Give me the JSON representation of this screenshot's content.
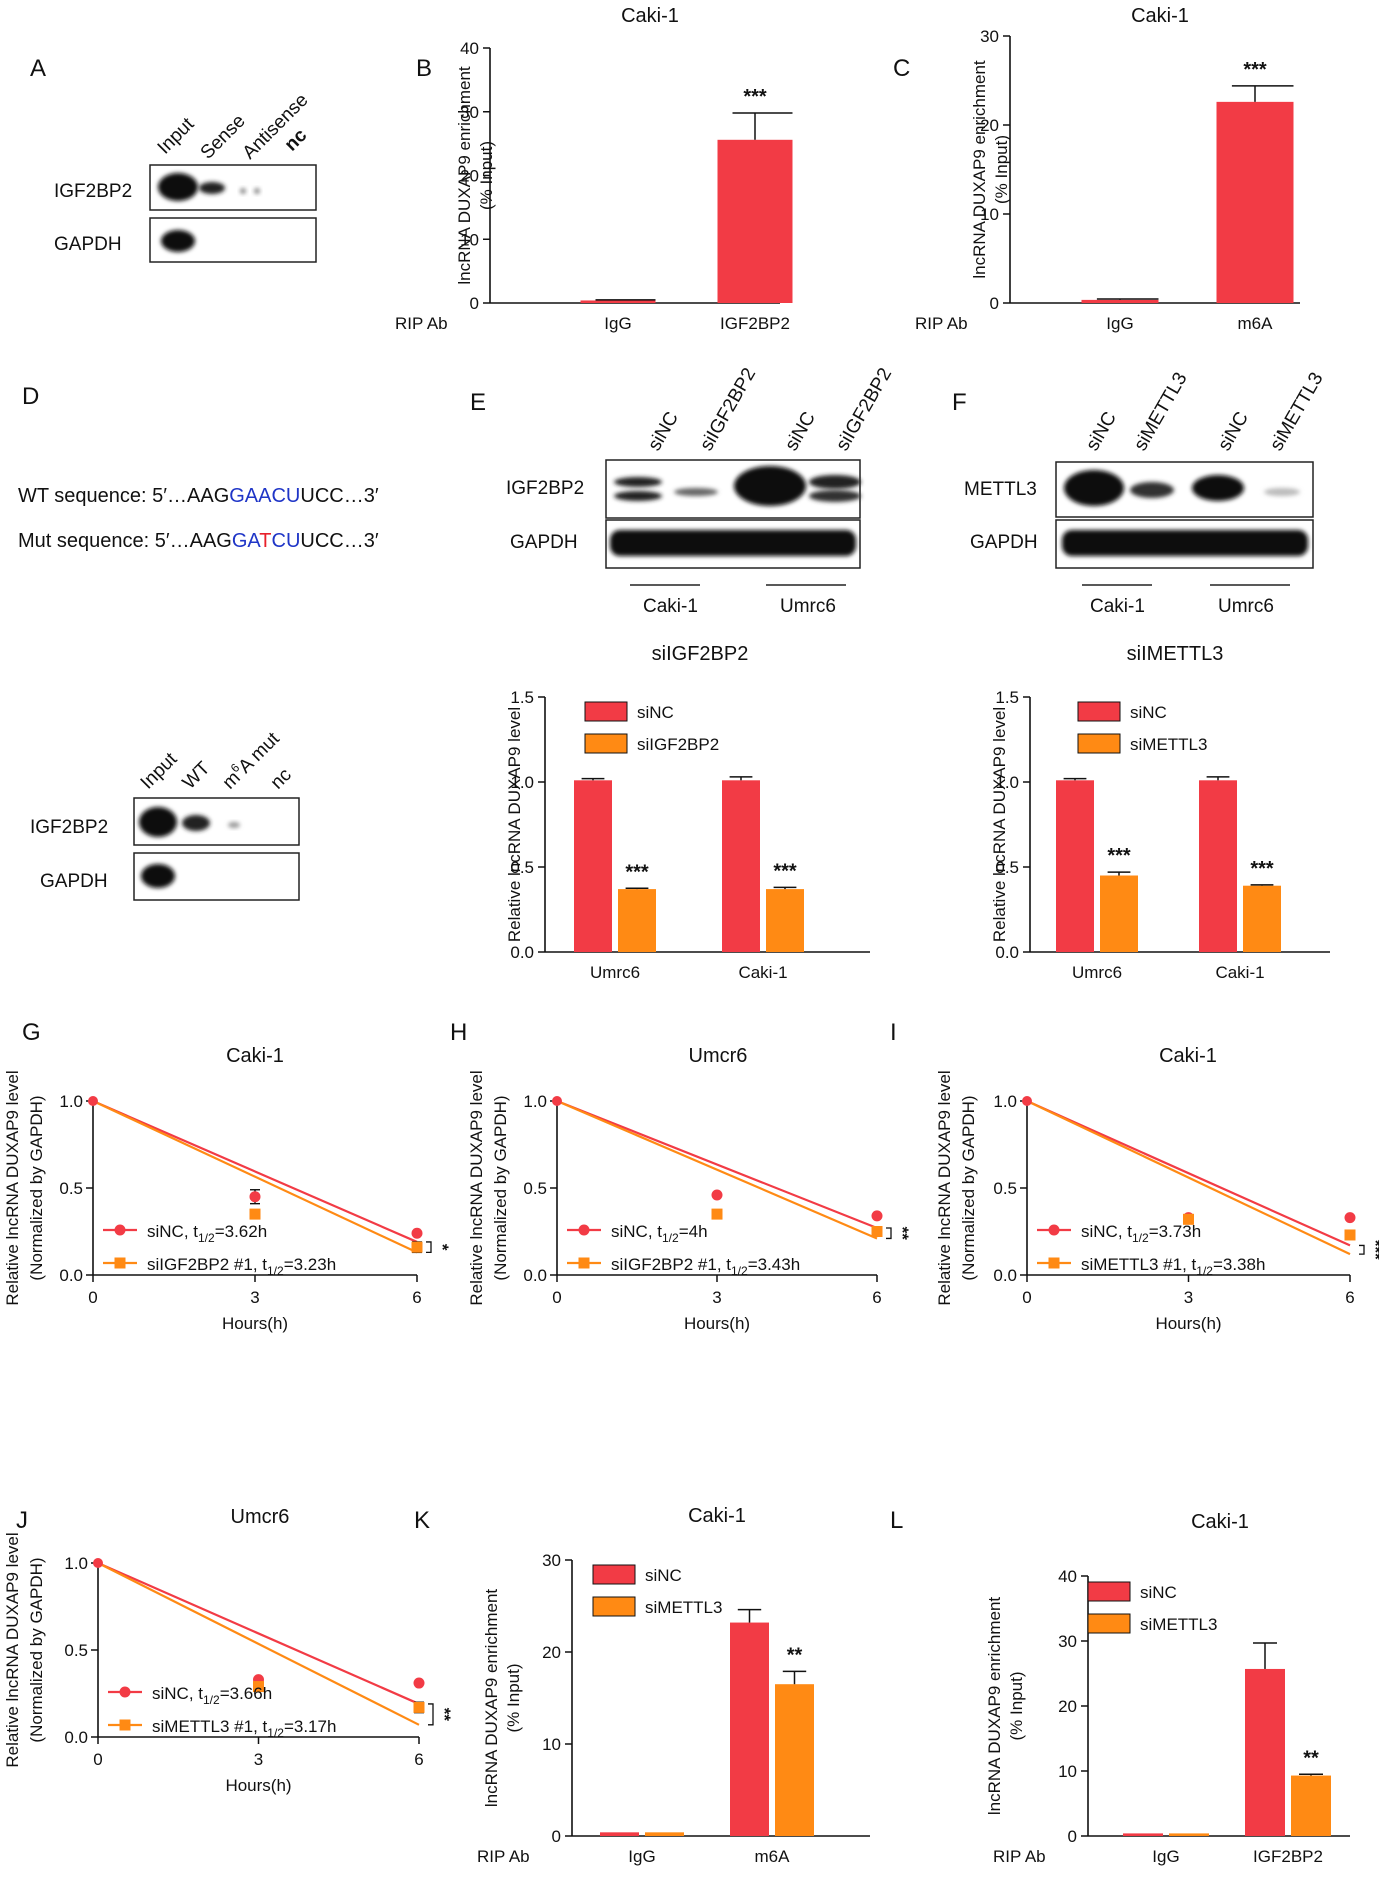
{
  "colors": {
    "red": "#f23b45",
    "orange": "#ff8a14",
    "blue": "#1f35c7",
    "seq_red": "#e8202a",
    "axis": "#111111"
  },
  "panel_letters": {
    "A": "A",
    "B": "B",
    "C": "C",
    "D": "D",
    "E": "E",
    "F": "F",
    "G": "G",
    "H": "H",
    "I": "I",
    "J": "J",
    "K": "K",
    "L": "L"
  },
  "blotA": {
    "lanes": [
      "Input",
      "Sense",
      "Antisense",
      "nc"
    ],
    "rows": [
      "IGF2BP2",
      "GAPDH"
    ]
  },
  "blotD": {
    "lanes": [
      "Input",
      "WT",
      "A mut",
      "nc"
    ],
    "sup": "6",
    "pre": "m",
    "rows": [
      "IGF2BP2",
      "GAPDH"
    ]
  },
  "blotE": {
    "lanes": [
      "siNC",
      "siIGF2BP2",
      "siNC",
      "siIGF2BP2"
    ],
    "rows": [
      "IGF2BP2",
      "GAPDH"
    ],
    "groups": [
      "Caki-1",
      "Umrc6"
    ]
  },
  "blotF": {
    "lanes": [
      "siNC",
      "siMETTL3",
      "siNC",
      "siMETTL3"
    ],
    "rows": [
      "METTL3",
      "GAPDH"
    ],
    "groups": [
      "Caki-1",
      "Umrc6"
    ]
  },
  "seq": {
    "wt_prefix": "WT sequence: 5′…AAG",
    "wt_mid": "GAACU",
    "wt_suffix": "UCC…3′",
    "mut_prefix": "Mut sequence: 5′…AAG",
    "mut_a": "GA",
    "mut_t": "T",
    "mut_b": "CU",
    "mut_suffix": "UCC…3′"
  },
  "chart_data": [
    {
      "id": "B",
      "type": "bar",
      "title": "Caki-1",
      "ylabel": "lncRNA DUXAP9 enrichment",
      "ylabel2": "(% Input)",
      "xprefix": "RIP Ab",
      "categories": [
        "IgG",
        "IGF2BP2"
      ],
      "series": [
        {
          "name": "",
          "values": [
            0.4,
            25.6
          ],
          "err": [
            0.1,
            4.2
          ],
          "colors": [
            "red",
            "red"
          ]
        }
      ],
      "ylim": [
        0,
        40
      ],
      "ticks": [
        0,
        10,
        20,
        30,
        40
      ],
      "stars": [
        "",
        "***"
      ]
    },
    {
      "id": "C",
      "type": "bar",
      "title": "Caki-1",
      "ylabel": "lncRNA DUXAP9 enrichment",
      "ylabel2": "(% Input)",
      "xprefix": "RIP Ab",
      "categories": [
        "IgG",
        "m6A"
      ],
      "series": [
        {
          "name": "",
          "values": [
            0.35,
            22.6
          ],
          "err": [
            0.1,
            1.8
          ],
          "colors": [
            "red",
            "red"
          ]
        }
      ],
      "ylim": [
        0,
        30
      ],
      "ticks": [
        0,
        10,
        20,
        30
      ],
      "stars": [
        "",
        "***"
      ]
    },
    {
      "id": "E2",
      "type": "bar",
      "title": "siIGF2BP2",
      "ylabel": "Relative lncRNA DUXAP9 level",
      "categories": [
        "Umrc6",
        "Caki-1"
      ],
      "series": [
        {
          "name": "siNC",
          "values": [
            1.01,
            1.01
          ],
          "err": [
            0.01,
            0.02
          ]
        },
        {
          "name": "siIGF2BP2",
          "values": [
            0.37,
            0.37
          ],
          "err": [
            0.005,
            0.01
          ]
        }
      ],
      "ylim": [
        0,
        1.5
      ],
      "ticks": [
        "0.0",
        "0.5",
        "1.0",
        "1.5"
      ],
      "stars": [
        "***",
        "***"
      ]
    },
    {
      "id": "F2",
      "type": "bar",
      "title": "siIMETTL3",
      "ylabel": "Relative lncRNA DUXAP9 level",
      "categories": [
        "Umrc6",
        "Caki-1"
      ],
      "series": [
        {
          "name": "siNC",
          "values": [
            1.01,
            1.01
          ],
          "err": [
            0.01,
            0.02
          ]
        },
        {
          "name": "siMETTL3",
          "values": [
            0.45,
            0.39
          ],
          "err": [
            0.02,
            0.005
          ]
        }
      ],
      "ylim": [
        0,
        1.5
      ],
      "ticks": [
        "0.0",
        "0.5",
        "1.0",
        "1.5"
      ],
      "stars": [
        "***",
        "***"
      ]
    },
    {
      "id": "G",
      "type": "line",
      "title": "Caki-1",
      "ylabel": "Relative lncRNA DUXAP9 level",
      "ylabel2": "(Normalized by GAPDH)",
      "xlabel": "Hours(h)",
      "x": [
        0,
        3,
        6
      ],
      "series": [
        {
          "name": "siNC, t",
          "sub": "1/2",
          "tail": "=3.62h",
          "points": [
            1.0,
            0.45,
            0.24
          ],
          "err": [
            0,
            0.04,
            0
          ],
          "fit_end": 0.19
        },
        {
          "name": "siIGF2BP2 #1, t",
          "sub": "1/2",
          "tail": "=3.23h",
          "points": [
            1.0,
            0.35,
            0.16
          ],
          "err": [
            0,
            0.02,
            0.03
          ],
          "fit_end": 0.13
        }
      ],
      "sig": "*",
      "ylim": [
        0,
        1.0
      ],
      "ticks": [
        "0.0",
        "0.5",
        "1.0"
      ],
      "xticks": [
        "0",
        "3",
        "6"
      ]
    },
    {
      "id": "H",
      "type": "line",
      "title": "Umcr6",
      "ylabel": "Relative lncRNA DUXAP9 level",
      "ylabel2": "(Normalized by GAPDH)",
      "xlabel": "Hours(h)",
      "x": [
        0,
        3,
        6
      ],
      "series": [
        {
          "name": "siNC, t",
          "sub": "1/2",
          "tail": "=4h",
          "points": [
            1.0,
            0.46,
            0.34
          ],
          "err": [
            0,
            0,
            0
          ],
          "fit_end": 0.27
        },
        {
          "name": "siIGF2BP2 #1, t",
          "sub": "1/2",
          "tail": "=3.43h",
          "points": [
            1.0,
            0.35,
            0.25
          ],
          "err": [
            0,
            0.02,
            0
          ],
          "fit_end": 0.21
        }
      ],
      "sig": "**",
      "ylim": [
        0,
        1.0
      ],
      "ticks": [
        "0.0",
        "0.5",
        "1.0"
      ],
      "xticks": [
        "0",
        "3",
        "6"
      ]
    },
    {
      "id": "I",
      "type": "line",
      "title": "Caki-1",
      "ylabel": "Relative lncRNA DUXAP9 level",
      "ylabel2": "(Normalized by GAPDH)",
      "xlabel": "Hours(h)",
      "x": [
        0,
        3,
        6
      ],
      "series": [
        {
          "name": "siNC, t",
          "sub": "1/2",
          "tail": "=3.73h",
          "points": [
            1.0,
            0.33,
            0.33
          ],
          "err": [
            0,
            0.01,
            0
          ],
          "fit_end": 0.17
        },
        {
          "name": "siMETTL3 #1, t",
          "sub": "1/2",
          "tail": "=3.38h",
          "points": [
            1.0,
            0.32,
            0.23
          ],
          "err": [
            0,
            0,
            0
          ],
          "fit_end": 0.12
        }
      ],
      "sig": "***",
      "ylim": [
        0,
        1.0
      ],
      "ticks": [
        "0.0",
        "0.5",
        "1.0"
      ],
      "xticks": [
        "0",
        "3",
        "6"
      ]
    },
    {
      "id": "J",
      "type": "line",
      "title": "Umcr6",
      "ylabel": "Relative lncRNA DUXAP9 level",
      "ylabel2": "(Normalized by GAPDH)",
      "xlabel": "Hours(h)",
      "x": [
        0,
        3,
        6
      ],
      "series": [
        {
          "name": "siNC, t",
          "sub": "1/2",
          "tail": "=3.66h",
          "points": [
            1.0,
            0.33,
            0.31
          ],
          "err": [
            0,
            0,
            0
          ],
          "fit_end": 0.19
        },
        {
          "name": "siMETTL3 #1, t",
          "sub": "1/2",
          "tail": "=3.17h",
          "points": [
            1.0,
            0.29,
            0.17
          ],
          "err": [
            0,
            0.01,
            0.03
          ],
          "fit_end": 0.07
        }
      ],
      "sig": "**",
      "ylim": [
        0,
        1.0
      ],
      "ticks": [
        "0.0",
        "0.5",
        "1.0"
      ],
      "xticks": [
        "0",
        "3",
        "6"
      ]
    },
    {
      "id": "K",
      "type": "bar",
      "title": "Caki-1",
      "ylabel": "lncRNA DUXAP9 enrichment",
      "ylabel2": "(% Input)",
      "xprefix": "RIP Ab",
      "categories": [
        "IgG",
        "m6A"
      ],
      "series": [
        {
          "name": "siNC",
          "values": [
            0.4,
            23.2
          ],
          "err": [
            0.05,
            1.4
          ]
        },
        {
          "name": "siMETTL3",
          "values": [
            0.4,
            16.5
          ],
          "err": [
            0.05,
            1.4
          ]
        }
      ],
      "ylim": [
        0,
        30
      ],
      "ticks": [
        0,
        10,
        20,
        30
      ],
      "stars": [
        "",
        "**"
      ]
    },
    {
      "id": "L",
      "type": "bar",
      "title": "Caki-1",
      "ylabel": "lncRNA DUXAP9 enrichment",
      "ylabel2": "(% Input)",
      "xprefix": "RIP Ab",
      "categories": [
        "IgG",
        "IGF2BP2"
      ],
      "series": [
        {
          "name": "siNC",
          "values": [
            0.4,
            25.7
          ],
          "err": [
            0.05,
            4.0
          ]
        },
        {
          "name": "siMETTL3",
          "values": [
            0.4,
            9.3
          ],
          "err": [
            0.05,
            0.2
          ]
        }
      ],
      "ylim": [
        0,
        40
      ],
      "ticks": [
        0,
        10,
        20,
        30,
        40
      ],
      "stars": [
        "",
        "**"
      ]
    }
  ]
}
